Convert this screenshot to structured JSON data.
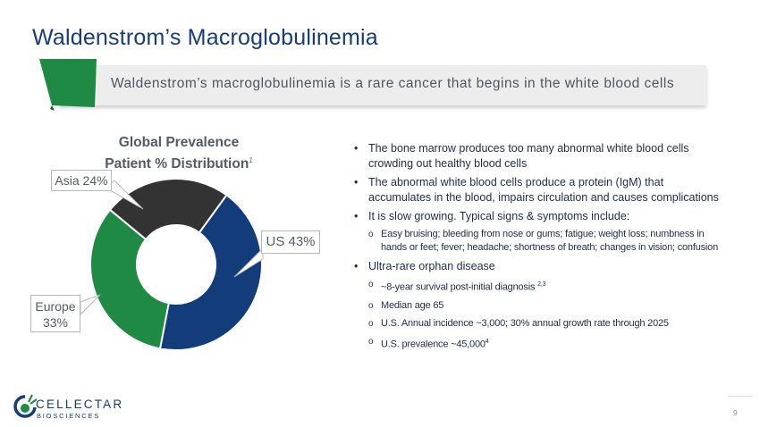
{
  "slide": {
    "title": "Waldenstrom’s Macroglobulinemia",
    "banner": "Waldenstrom’s macroglobulinemia is a rare cancer that begins in the white blood cells",
    "page_number": "9"
  },
  "colors": {
    "title": "#163d7a",
    "accent_green": "#1e8a44",
    "us": "#123d7a",
    "europe": "#1e8a44",
    "asia": "#333333"
  },
  "chart_data": {
    "type": "pie",
    "title_line1": "Global Prevalence",
    "title_line2": "Patient % Distribution",
    "title_sup": "1",
    "slices": [
      {
        "label": "US",
        "value": 43,
        "display": "US 43%"
      },
      {
        "label": "Europe",
        "value": 33,
        "display_line1": "Europe",
        "display_line2": "33%"
      },
      {
        "label": "Asia",
        "value": 24,
        "display": "Asia 24%"
      }
    ]
  },
  "bullets": {
    "b1": "The bone marrow produces too many abnormal white blood cells crowding out healthy blood cells",
    "b2": "The abnormal white blood cells produce a protein (IgM) that accumulates in the blood, impairs circulation and causes complications",
    "b3": "It is slow growing. Typical signs & symptoms include:",
    "b3_sub1": "Easy bruising; bleeding from nose or gums; fatigue; weight loss; numbness in hands or feet; fever; headache; shortness of breath; changes in vision; confusion",
    "b4": "Ultra-rare orphan disease",
    "b4_sub1": "~8-year survival post-initial diagnosis",
    "b4_sub1_sup": "2,3",
    "b4_sub2": "Median age 65",
    "b4_sub3": "U.S. Annual incidence ~3,000; 30% annual growth rate through 2025",
    "b4_sub4": "U.S. prevalence ~45,000",
    "b4_sub4_sup": "4"
  },
  "logo": {
    "name": "CELLECTAR",
    "sub": "BIOSCIENCES"
  }
}
